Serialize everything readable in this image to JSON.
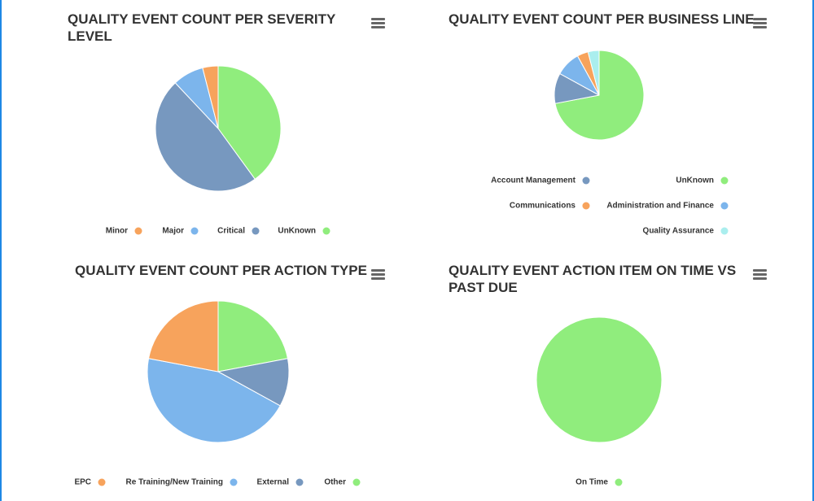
{
  "chart_data": [
    {
      "type": "pie",
      "title": "QUALITY EVENT COUNT PER SEVERITY LEVEL",
      "categories": [
        "UnKnown",
        "Critical",
        "Major",
        "Minor"
      ],
      "values": [
        40,
        48,
        8,
        4
      ],
      "colors": [
        "#90ed7d",
        "#7798bf",
        "#7cb5ec",
        "#f7a35c"
      ]
    },
    {
      "type": "pie",
      "title": "QUALITY EVENT COUNT PER BUSINESS LINE",
      "categories": [
        "UnKnown",
        "Account Management",
        "Administration and Finance",
        "Communications",
        "Quality Assurance"
      ],
      "values": [
        72,
        11,
        9,
        4,
        4
      ],
      "colors": [
        "#90ed7d",
        "#7798bf",
        "#7cb5ec",
        "#f7a35c",
        "#aaeeee"
      ]
    },
    {
      "type": "pie",
      "title": "QUALITY EVENT COUNT PER ACTION TYPE",
      "categories": [
        "Other",
        "External",
        "Re Training/New Training",
        "EPC"
      ],
      "values": [
        22,
        11,
        45,
        22
      ],
      "colors": [
        "#90ed7d",
        "#7798bf",
        "#7cb5ec",
        "#f7a35c"
      ]
    },
    {
      "type": "pie",
      "title": "QUALITY EVENT ACTION ITEM ON TIME VS PAST DUE",
      "categories": [
        "On Time"
      ],
      "values": [
        100
      ],
      "colors": [
        "#90ed7d"
      ]
    }
  ]
}
